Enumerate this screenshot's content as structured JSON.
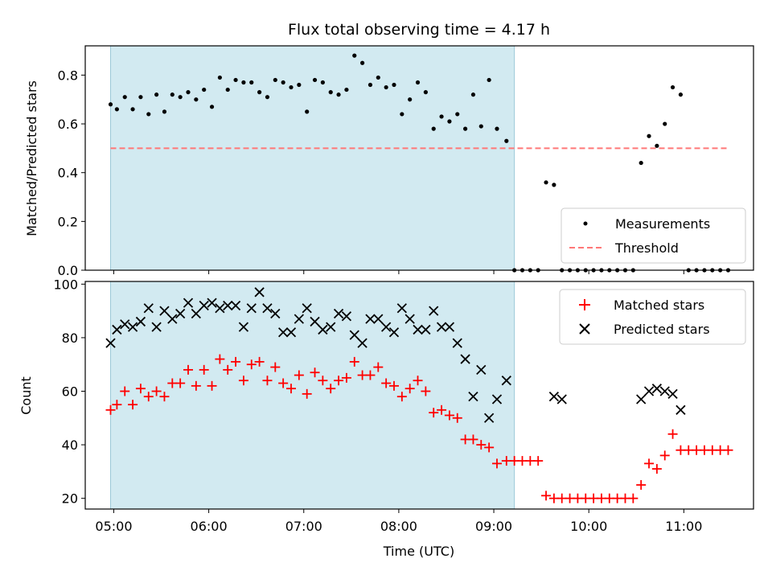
{
  "chart_data": [
    {
      "type": "scatter",
      "title": "Flux total observing time = 4.17 h",
      "xlabel": "",
      "ylabel": "Matched/Predicted stars",
      "ylim": [
        0,
        0.92
      ],
      "yticks": [
        "0.0",
        "0.2",
        "0.4",
        "0.6",
        "0.8"
      ],
      "highlight_span": [
        "04:58",
        "09:13"
      ],
      "highlight_color": "#add8e6",
      "legend": {
        "placement": "lower-right",
        "entries": [
          "Measurements",
          "Threshold"
        ]
      },
      "series": [
        {
          "name": "Measurements",
          "marker": "dot",
          "color": "#000000",
          "x": [
            "04:58",
            "05:02",
            "05:07",
            "05:12",
            "05:17",
            "05:22",
            "05:27",
            "05:32",
            "05:37",
            "05:42",
            "05:47",
            "05:52",
            "05:57",
            "06:02",
            "06:07",
            "06:12",
            "06:17",
            "06:22",
            "06:27",
            "06:32",
            "06:37",
            "06:42",
            "06:47",
            "06:52",
            "06:57",
            "07:02",
            "07:07",
            "07:12",
            "07:17",
            "07:22",
            "07:27",
            "07:32",
            "07:37",
            "07:42",
            "07:47",
            "07:52",
            "07:57",
            "08:02",
            "08:07",
            "08:12",
            "08:17",
            "08:22",
            "08:27",
            "08:32",
            "08:37",
            "08:42",
            "08:47",
            "08:52",
            "08:57",
            "09:02",
            "09:08",
            "09:13",
            "09:18",
            "09:23",
            "09:28",
            "09:33",
            "09:38",
            "09:43",
            "09:48",
            "09:53",
            "09:58",
            "10:03",
            "10:08",
            "10:13",
            "10:18",
            "10:23",
            "10:28",
            "10:33",
            "10:38",
            "10:43",
            "10:48",
            "10:53",
            "10:58",
            "11:03",
            "11:08",
            "11:13",
            "11:18",
            "11:23",
            "11:28"
          ],
          "y": [
            0.68,
            0.66,
            0.71,
            0.66,
            0.71,
            0.64,
            0.72,
            0.65,
            0.72,
            0.71,
            0.73,
            0.7,
            0.74,
            0.67,
            0.79,
            0.74,
            0.78,
            0.77,
            0.77,
            0.73,
            0.71,
            0.78,
            0.77,
            0.75,
            0.76,
            0.65,
            0.78,
            0.77,
            0.73,
            0.72,
            0.74,
            0.88,
            0.85,
            0.76,
            0.79,
            0.75,
            0.76,
            0.64,
            0.7,
            0.77,
            0.73,
            0.58,
            0.63,
            0.61,
            0.64,
            0.58,
            0.72,
            0.59,
            0.78,
            0.58,
            0.53,
            0.0,
            0.0,
            0.0,
            0.0,
            0.36,
            0.35,
            0.0,
            0.0,
            0.0,
            0.0,
            0.0,
            0.0,
            0.0,
            0.0,
            0.0,
            0.0,
            0.44,
            0.55,
            0.51,
            0.6,
            0.75,
            0.72,
            0.0,
            0.0,
            0.0,
            0.0,
            0.0,
            0.0
          ]
        },
        {
          "name": "Threshold",
          "marker": "dashed-line",
          "color": "#ff7777",
          "x": [
            "04:58",
            "11:28"
          ],
          "y": [
            0.5,
            0.5
          ]
        }
      ]
    },
    {
      "type": "scatter",
      "title": "",
      "xlabel": "Time (UTC)",
      "ylabel": "Count",
      "ylim": [
        16,
        101
      ],
      "yticks": [
        "20",
        "40",
        "60",
        "80",
        "100"
      ],
      "xticks": [
        "05:00",
        "06:00",
        "07:00",
        "08:00",
        "09:00",
        "10:00",
        "11:00"
      ],
      "highlight_span": [
        "04:58",
        "09:13"
      ],
      "highlight_color": "#add8e6",
      "legend": {
        "placement": "upper-right",
        "entries": [
          "Matched stars",
          "Predicted stars"
        ]
      },
      "series": [
        {
          "name": "Matched stars",
          "marker": "plus",
          "color": "#ff0000",
          "x": [
            "04:58",
            "05:02",
            "05:07",
            "05:12",
            "05:17",
            "05:22",
            "05:27",
            "05:32",
            "05:37",
            "05:42",
            "05:47",
            "05:52",
            "05:57",
            "06:02",
            "06:07",
            "06:12",
            "06:17",
            "06:22",
            "06:27",
            "06:32",
            "06:37",
            "06:42",
            "06:47",
            "06:52",
            "06:57",
            "07:02",
            "07:07",
            "07:12",
            "07:17",
            "07:22",
            "07:27",
            "07:32",
            "07:37",
            "07:42",
            "07:47",
            "07:52",
            "07:57",
            "08:02",
            "08:07",
            "08:12",
            "08:17",
            "08:22",
            "08:27",
            "08:32",
            "08:37",
            "08:42",
            "08:47",
            "08:52",
            "08:57",
            "09:02",
            "09:08",
            "09:13",
            "09:18",
            "09:23",
            "09:28",
            "09:33",
            "09:38",
            "09:43",
            "09:48",
            "09:53",
            "09:58",
            "10:03",
            "10:08",
            "10:13",
            "10:18",
            "10:23",
            "10:28",
            "10:33",
            "10:38",
            "10:43",
            "10:48",
            "10:53",
            "10:58",
            "11:03",
            "11:08",
            "11:13",
            "11:18",
            "11:23",
            "11:28"
          ],
          "y": [
            53,
            55,
            60,
            55,
            61,
            58,
            60,
            58,
            63,
            63,
            68,
            62,
            68,
            62,
            72,
            68,
            71,
            64,
            70,
            71,
            64,
            69,
            63,
            61,
            66,
            59,
            67,
            64,
            61,
            64,
            65,
            71,
            66,
            66,
            69,
            63,
            62,
            58,
            61,
            64,
            60,
            52,
            53,
            51,
            50,
            42,
            42,
            40,
            39,
            33,
            34,
            34,
            34,
            34,
            34,
            21,
            20,
            20,
            20,
            20,
            20,
            20,
            20,
            20,
            20,
            20,
            20,
            25,
            33,
            31,
            36,
            44,
            38,
            38,
            38,
            38,
            38,
            38,
            38
          ]
        },
        {
          "name": "Predicted stars",
          "marker": "x",
          "color": "#000000",
          "x": [
            "04:58",
            "05:02",
            "05:07",
            "05:12",
            "05:17",
            "05:22",
            "05:27",
            "05:32",
            "05:37",
            "05:42",
            "05:47",
            "05:52",
            "05:57",
            "06:02",
            "06:07",
            "06:12",
            "06:17",
            "06:22",
            "06:27",
            "06:32",
            "06:37",
            "06:42",
            "06:47",
            "06:52",
            "06:57",
            "07:02",
            "07:07",
            "07:12",
            "07:17",
            "07:22",
            "07:27",
            "07:32",
            "07:37",
            "07:42",
            "07:47",
            "07:52",
            "07:57",
            "08:02",
            "08:07",
            "08:12",
            "08:17",
            "08:22",
            "08:27",
            "08:32",
            "08:37",
            "08:42",
            "08:47",
            "08:52",
            "08:57",
            "09:02",
            "09:08",
            "09:38",
            "09:43",
            "10:33",
            "10:38",
            "10:43",
            "10:48",
            "10:53",
            "10:58"
          ],
          "y": [
            78,
            83,
            85,
            84,
            86,
            91,
            84,
            90,
            87,
            89,
            93,
            89,
            92,
            93,
            91,
            92,
            92,
            84,
            91,
            97,
            91,
            89,
            82,
            82,
            87,
            91,
            86,
            83,
            84,
            89,
            88,
            81,
            78,
            87,
            87,
            84,
            82,
            91,
            87,
            83,
            83,
            90,
            84,
            84,
            78,
            72,
            58,
            68,
            50,
            57,
            64,
            58,
            57,
            57,
            60,
            61,
            60,
            59,
            53
          ]
        }
      ]
    }
  ]
}
